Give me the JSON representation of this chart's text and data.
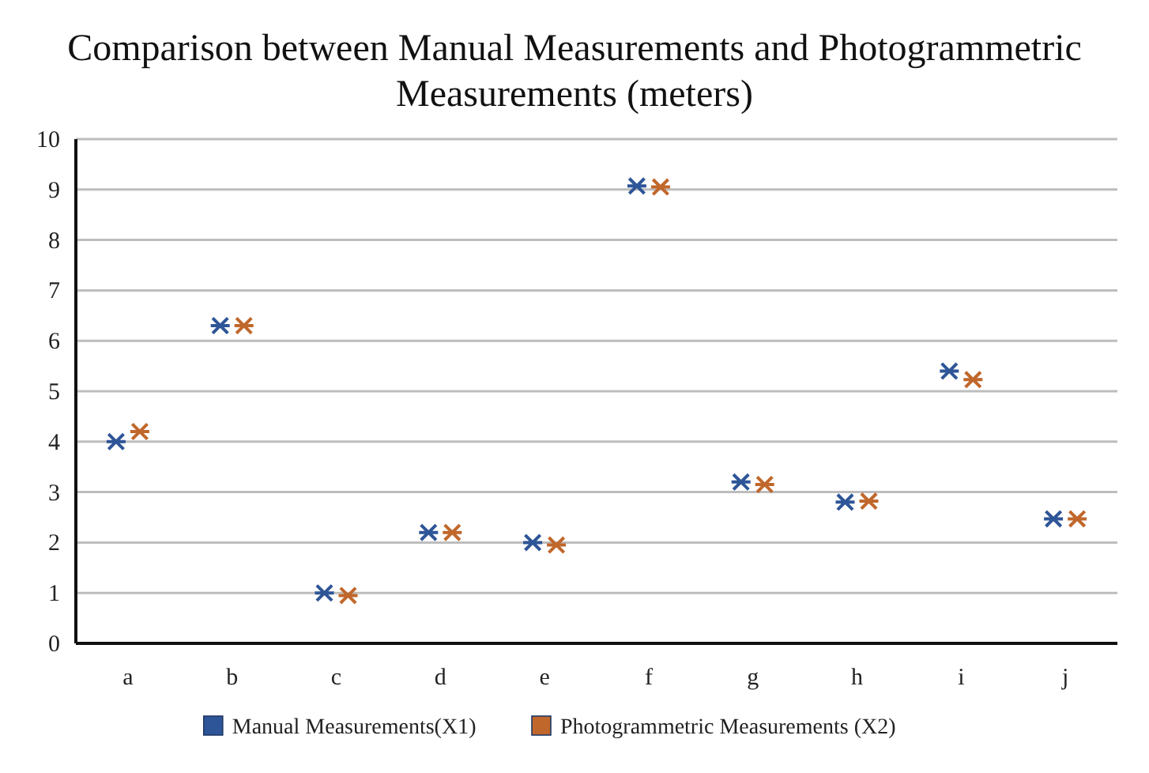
{
  "chart_data": {
    "type": "scatter",
    "title": "Comparison between Manual Measurements and Photogrammetric Measurements (meters)",
    "categories": [
      "a",
      "b",
      "c",
      "d",
      "e",
      "f",
      "g",
      "h",
      "i",
      "j"
    ],
    "series": [
      {
        "name": "Manual Measurements(X1)",
        "color": "#2e5597",
        "values": [
          4.0,
          6.3,
          1.0,
          2.2,
          2.0,
          9.07,
          3.2,
          2.8,
          5.4,
          2.47
        ]
      },
      {
        "name": "Photogrammetric Measurements (X2)",
        "color": "#c0672b",
        "values": [
          4.2,
          6.3,
          0.95,
          2.2,
          1.95,
          9.05,
          3.15,
          2.82,
          5.23,
          2.47
        ]
      }
    ],
    "ylim": [
      0,
      10
    ],
    "yticks": [
      0,
      1,
      2,
      3,
      4,
      5,
      6,
      7,
      8,
      9,
      10
    ],
    "grid": "y",
    "legend": "bottom",
    "marker": "cross"
  }
}
